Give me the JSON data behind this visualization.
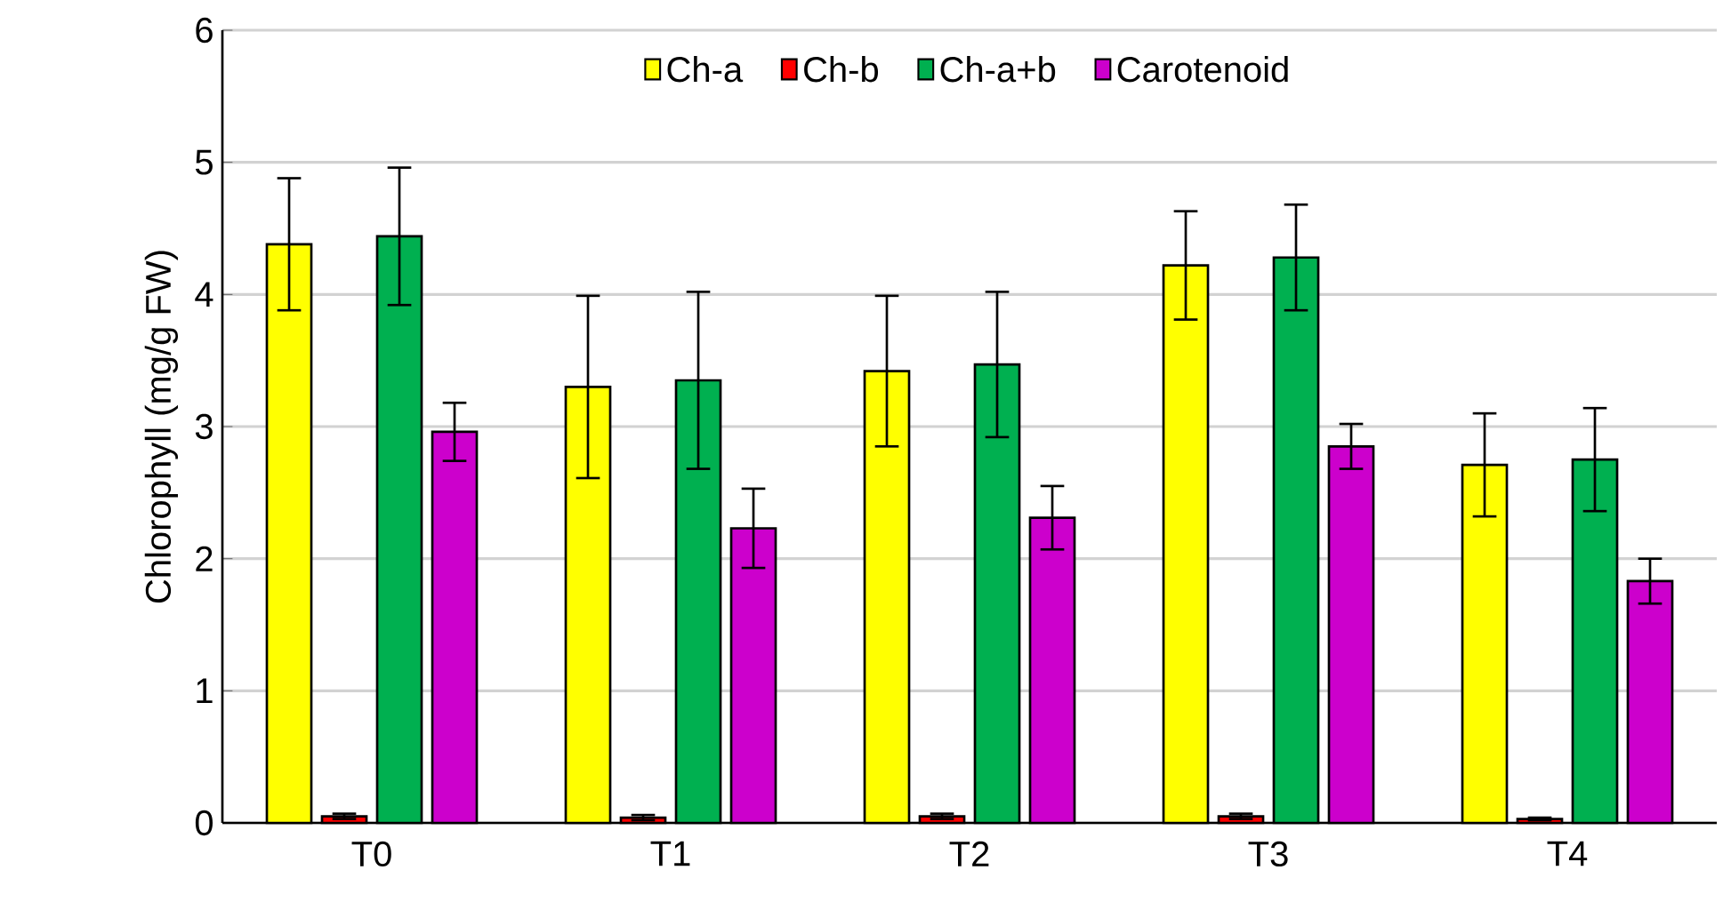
{
  "chart_data": {
    "type": "bar",
    "ylabel": "Chlorophyll (mg/g FW)",
    "categories": [
      "T0",
      "T1",
      "T2",
      "T3",
      "T4"
    ],
    "series": [
      {
        "name": "Ch-a",
        "color": "#ffff00",
        "values": [
          4.38,
          3.3,
          3.42,
          4.22,
          2.71
        ],
        "errors": [
          0.5,
          0.69,
          0.57,
          0.41,
          0.39
        ]
      },
      {
        "name": "Ch-b",
        "color": "#ff0000",
        "values": [
          0.05,
          0.04,
          0.05,
          0.05,
          0.03
        ],
        "errors": [
          0.02,
          0.02,
          0.02,
          0.02,
          0.01
        ]
      },
      {
        "name": "Ch-a+b",
        "color": "#00b050",
        "values": [
          4.44,
          3.35,
          3.47,
          4.28,
          2.75
        ],
        "errors": [
          0.52,
          0.67,
          0.55,
          0.4,
          0.39
        ]
      },
      {
        "name": "Carotenoid",
        "color": "#cc00cc",
        "values": [
          2.96,
          2.23,
          2.31,
          2.85,
          1.83
        ],
        "errors": [
          0.22,
          0.3,
          0.24,
          0.17,
          0.17
        ]
      }
    ],
    "ylim": [
      0,
      6
    ],
    "yticks": [
      0,
      1,
      2,
      3,
      4,
      5,
      6
    ],
    "grid": "y",
    "legend": "top"
  }
}
